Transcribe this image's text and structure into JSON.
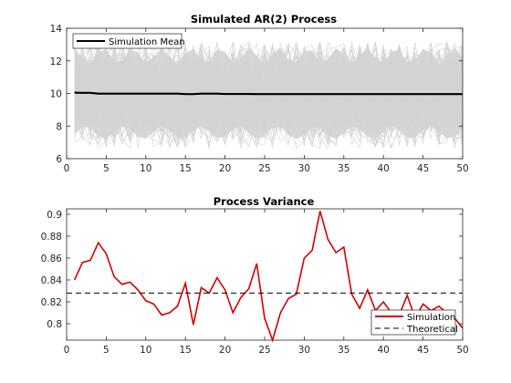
{
  "chart_data": [
    {
      "type": "line",
      "title": "Simulated AR(2) Process",
      "xlabel": "",
      "ylabel": "",
      "xlim": [
        0,
        50
      ],
      "ylim": [
        6,
        14
      ],
      "xticks": [
        0,
        5,
        10,
        15,
        20,
        25,
        30,
        35,
        40,
        45,
        50
      ],
      "yticks": [
        6,
        8,
        10,
        12,
        14
      ],
      "grid": false,
      "legend_position": "top-left",
      "background_paths": {
        "description_color": "#d3d3d3",
        "band_low_approx": [
          7.2,
          8.0
        ],
        "band_high_approx": [
          11.8,
          12.8
        ]
      },
      "series": [
        {
          "name": "Simulation Mean",
          "color": "#000000",
          "x": [
            1,
            2,
            3,
            4,
            5,
            6,
            7,
            8,
            9,
            10,
            11,
            12,
            13,
            14,
            15,
            16,
            17,
            18,
            19,
            20,
            21,
            22,
            23,
            24,
            25,
            26,
            27,
            28,
            29,
            30,
            31,
            32,
            33,
            34,
            35,
            36,
            37,
            38,
            39,
            40,
            41,
            42,
            43,
            44,
            45,
            46,
            47,
            48,
            49,
            50
          ],
          "values": [
            10.05,
            10.04,
            10.04,
            9.99,
            9.99,
            9.99,
            9.99,
            9.99,
            9.99,
            9.99,
            9.99,
            9.99,
            9.99,
            9.99,
            9.96,
            9.96,
            9.99,
            9.99,
            9.99,
            9.97,
            9.97,
            9.97,
            9.97,
            9.96,
            9.96,
            9.96,
            9.96,
            9.96,
            9.96,
            9.96,
            9.96,
            9.96,
            9.96,
            9.96,
            9.96,
            9.96,
            9.96,
            9.96,
            9.96,
            9.96,
            9.96,
            9.96,
            9.96,
            9.96,
            9.96,
            9.96,
            9.96,
            9.96,
            9.96,
            9.96
          ]
        }
      ]
    },
    {
      "type": "line",
      "title": "Process Variance",
      "xlabel": "",
      "ylabel": "",
      "xlim": [
        0,
        50
      ],
      "ylim": [
        0.785,
        0.905
      ],
      "xticks": [
        0,
        5,
        10,
        15,
        20,
        25,
        30,
        35,
        40,
        45,
        50
      ],
      "yticks": [
        0.8,
        0.82,
        0.84,
        0.86,
        0.88,
        0.9
      ],
      "grid": false,
      "legend_position": "bottom-right",
      "series": [
        {
          "name": "Simulation",
          "color": "#d40000",
          "x": [
            1,
            2,
            3,
            4,
            5,
            6,
            7,
            8,
            9,
            10,
            11,
            12,
            13,
            14,
            15,
            16,
            17,
            18,
            19,
            20,
            21,
            22,
            23,
            24,
            25,
            26,
            27,
            28,
            29,
            30,
            31,
            32,
            33,
            34,
            35,
            36,
            37,
            38,
            39,
            40,
            41,
            42,
            43,
            44,
            45,
            46,
            47,
            48,
            49,
            50
          ],
          "values": [
            0.84,
            0.856,
            0.858,
            0.874,
            0.864,
            0.843,
            0.836,
            0.838,
            0.831,
            0.821,
            0.818,
            0.808,
            0.81,
            0.816,
            0.837,
            0.799,
            0.833,
            0.828,
            0.842,
            0.831,
            0.81,
            0.824,
            0.832,
            0.855,
            0.805,
            0.785,
            0.81,
            0.823,
            0.827,
            0.86,
            0.867,
            0.903,
            0.877,
            0.865,
            0.87,
            0.827,
            0.814,
            0.831,
            0.812,
            0.82,
            0.81,
            0.808,
            0.826,
            0.805,
            0.818,
            0.812,
            0.816,
            0.81,
            0.805,
            0.796
          ]
        },
        {
          "name": "Theoretical",
          "color": "#000000",
          "dash": "dashed",
          "x": [
            0,
            50
          ],
          "values": [
            0.828,
            0.828
          ]
        }
      ]
    }
  ]
}
